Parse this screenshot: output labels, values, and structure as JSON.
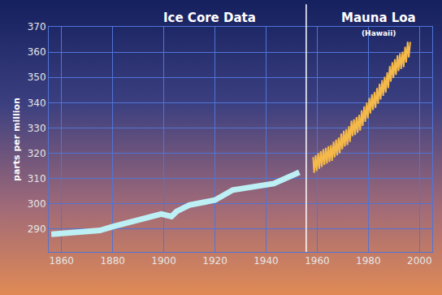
{
  "chart_data": {
    "type": "line",
    "y_label": "parts per million",
    "series": [
      {
        "name": "Ice Core Data",
        "color": "#bdf0f5",
        "x": [
          1856,
          1870,
          1875,
          1880,
          1890,
          1899,
          1903,
          1905,
          1910,
          1920,
          1927,
          1933,
          1943,
          1953
        ],
        "values": [
          288,
          289,
          289.5,
          291,
          293.5,
          296,
          295,
          297,
          299.5,
          301.5,
          305.5,
          306.5,
          308,
          312.5
        ]
      },
      {
        "name": "Mauna Loa",
        "color": "#f5b94a",
        "x": [
          1958.4,
          1958.8,
          1959.4,
          1959.8,
          1960.4,
          1960.8,
          1961.4,
          1961.8,
          1962.4,
          1962.8,
          1963.4,
          1963.8,
          1964.4,
          1964.8,
          1965.4,
          1965.8,
          1966.4,
          1966.8,
          1967.4,
          1967.8,
          1968.4,
          1968.8,
          1969.4,
          1969.8,
          1970.4,
          1970.8,
          1971.4,
          1971.8,
          1972.4,
          1972.8,
          1973.4,
          1973.8,
          1974.4,
          1974.8,
          1975.4,
          1975.8,
          1976.4,
          1976.8,
          1977.4,
          1977.8,
          1978.4,
          1978.8,
          1979.4,
          1979.8,
          1980.4,
          1980.8,
          1981.4,
          1981.8,
          1982.4,
          1982.8,
          1983.4,
          1983.8,
          1984.4,
          1984.8,
          1985.4,
          1985.8,
          1986.4,
          1986.8,
          1987.4,
          1987.8,
          1988.4,
          1988.8,
          1989.4,
          1989.8,
          1990.4,
          1990.8,
          1991.4,
          1991.8,
          1992.4,
          1992.8,
          1993.4,
          1993.8,
          1994.4,
          1994.8,
          1995.4,
          1995.8,
          1996.4
        ],
        "values": [
          318.5,
          312.3,
          319.2,
          313.0,
          320.1,
          313.9,
          320.8,
          314.6,
          321.6,
          315.4,
          322.2,
          316.0,
          322.8,
          316.6,
          323.2,
          317.0,
          324.6,
          318.4,
          325.4,
          319.2,
          326.2,
          320.0,
          327.8,
          321.6,
          328.9,
          322.7,
          329.5,
          323.3,
          330.7,
          324.5,
          332.9,
          326.7,
          333.4,
          327.2,
          334.3,
          328.1,
          335.2,
          329.0,
          337.0,
          330.8,
          338.6,
          332.4,
          340.0,
          333.8,
          341.9,
          335.7,
          343.3,
          337.1,
          344.2,
          338.0,
          345.8,
          339.6,
          347.5,
          341.3,
          348.9,
          342.7,
          350.2,
          344.0,
          352.0,
          345.8,
          354.5,
          348.3,
          356.0,
          349.8,
          357.2,
          351.0,
          358.7,
          352.5,
          359.5,
          353.3,
          360.2,
          354.0,
          362.1,
          355.9,
          364.1,
          357.9,
          364.0
        ]
      }
    ],
    "annotations": [
      "(Hawaii)"
    ],
    "xlim": [
      1855,
      2005
    ],
    "xticks": [
      1860,
      1880,
      1900,
      1920,
      1940,
      1960,
      1980,
      2000
    ],
    "ylim": [
      281,
      370
    ],
    "yticks": [
      290,
      300,
      310,
      320,
      330,
      340,
      350,
      360,
      370
    ],
    "grid": true
  }
}
